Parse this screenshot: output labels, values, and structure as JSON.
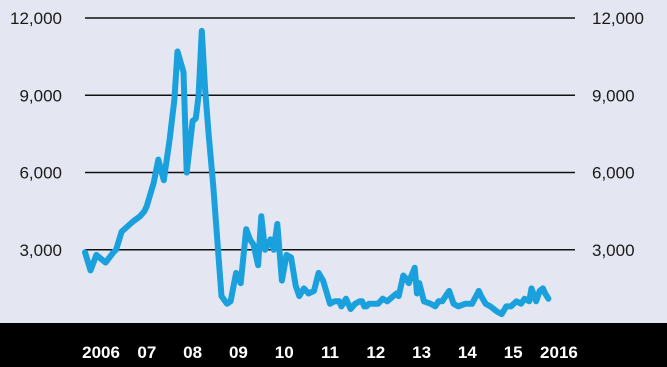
{
  "chart_data": {
    "type": "line",
    "title": "",
    "xlabel": "",
    "ylabel": "",
    "ylim": [
      0,
      12000
    ],
    "yticks": [
      {
        "value": 3000,
        "label": "3,000"
      },
      {
        "value": 6000,
        "label": "6,000"
      },
      {
        "value": 9000,
        "label": "9,000"
      },
      {
        "value": 12000,
        "label": "12,000"
      }
    ],
    "xlim": [
      2006.0,
      2016.7
    ],
    "xticks": [
      {
        "value": 2006.35,
        "label": "2006"
      },
      {
        "value": 2007.35,
        "label": "07"
      },
      {
        "value": 2008.35,
        "label": "08"
      },
      {
        "value": 2009.35,
        "label": "09"
      },
      {
        "value": 2010.35,
        "label": "10"
      },
      {
        "value": 2011.35,
        "label": "11"
      },
      {
        "value": 2012.35,
        "label": "12"
      },
      {
        "value": 2013.35,
        "label": "13"
      },
      {
        "value": 2014.35,
        "label": "14"
      },
      {
        "value": 2015.35,
        "label": "15"
      },
      {
        "value": 2016.35,
        "label": "2016"
      }
    ],
    "grid": true,
    "line_color": "#1aa0dd",
    "axis_band_color": "#000000",
    "background": "#e4e7f1",
    "series": [
      {
        "x": [
          2006.0,
          2006.12,
          2006.25,
          2006.45,
          2006.62,
          2006.68,
          2006.8,
          2007.05,
          2007.2,
          2007.3,
          2007.35,
          2007.5,
          2007.6,
          2007.72,
          2007.85,
          2007.95,
          2008.02,
          2008.15,
          2008.22,
          2008.35,
          2008.42,
          2008.48,
          2008.55,
          2008.62,
          2008.7,
          2008.8,
          2008.98,
          2009.1,
          2009.18,
          2009.3,
          2009.4,
          2009.52,
          2009.6,
          2009.68,
          2009.78,
          2009.85,
          2009.93,
          2010.05,
          2010.12,
          2010.2,
          2010.3,
          2010.4,
          2010.5,
          2010.6,
          2010.68,
          2010.78,
          2010.88,
          2011.0,
          2011.1,
          2011.2,
          2011.35,
          2011.45,
          2011.55,
          2011.6,
          2011.7,
          2011.8,
          2011.9,
          2012.0,
          2012.05,
          2012.1,
          2012.15,
          2012.2,
          2012.3,
          2012.4,
          2012.5,
          2012.6,
          2012.8,
          2012.85,
          2012.95,
          2013.0,
          2013.07,
          2013.13,
          2013.2,
          2013.25,
          2013.3,
          2013.4,
          2013.55,
          2013.65,
          2013.72,
          2013.8,
          2013.95,
          2014.05,
          2014.15,
          2014.3,
          2014.45,
          2014.6,
          2014.65,
          2014.75,
          2014.85,
          2015.0,
          2015.1,
          2015.2,
          2015.3,
          2015.42,
          2015.52,
          2015.6,
          2015.7,
          2015.75,
          2015.85,
          2015.93,
          2016.0,
          2016.05,
          2016.12
        ],
        "values": [
          2900,
          2200,
          2800,
          2500,
          2900,
          3000,
          3700,
          4100,
          4300,
          4500,
          4700,
          5600,
          6500,
          5700,
          7300,
          8800,
          10700,
          9900,
          6000,
          8000,
          8100,
          9000,
          11500,
          9300,
          7500,
          5500,
          1200,
          900,
          1000,
          2100,
          1700,
          3800,
          3400,
          3200,
          2400,
          4300,
          3000,
          3400,
          3000,
          4000,
          1800,
          2800,
          2700,
          1600,
          1200,
          1500,
          1300,
          1400,
          2100,
          1800,
          900,
          1000,
          1000,
          800,
          1100,
          700,
          900,
          1000,
          1000,
          800,
          800,
          900,
          900,
          900,
          1100,
          1000,
          1300,
          1200,
          2000,
          1900,
          1700,
          2000,
          2300,
          1300,
          1700,
          1000,
          900,
          800,
          1000,
          1000,
          1400,
          900,
          800,
          900,
          900,
          1400,
          1200,
          900,
          800,
          600,
          500,
          800,
          800,
          1000,
          900,
          1100,
          1000,
          1500,
          1000,
          1400,
          1500,
          1300,
          1100
        ]
      }
    ]
  }
}
